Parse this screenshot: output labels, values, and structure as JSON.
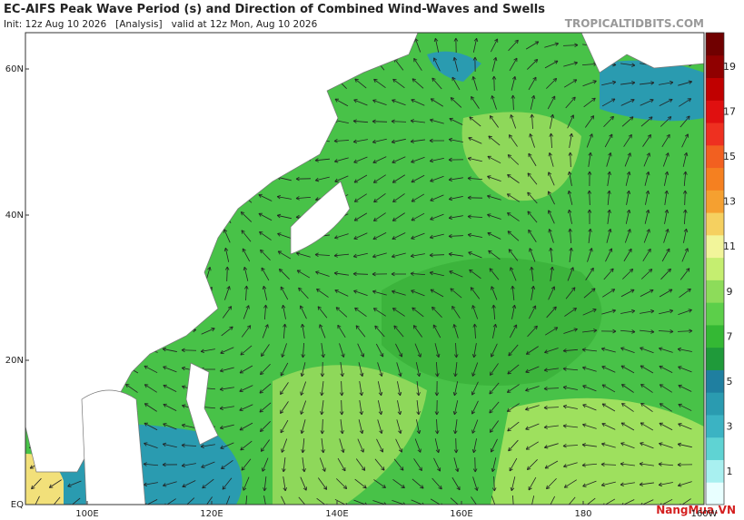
{
  "header": {
    "title": "EC-AIFS Peak Wave Period (s) and Direction of Combined Wind-Waves and Swells",
    "subtitle": "Init: 12z Aug 10 2026   [Analysis]   valid at 12z Mon, Aug 10 2026",
    "source": "TROPICALTIDBITS.COM"
  },
  "map": {
    "lat_labels": [
      "60N",
      "40N",
      "20N",
      "EQ"
    ],
    "lon_labels": [
      "100E",
      "120E",
      "140E",
      "160E",
      "180",
      "160W"
    ]
  },
  "colorbar": {
    "labels": [
      1,
      3,
      5,
      7,
      9,
      11,
      13,
      15,
      17,
      19
    ]
  },
  "watermark": "NangMua.VN"
}
